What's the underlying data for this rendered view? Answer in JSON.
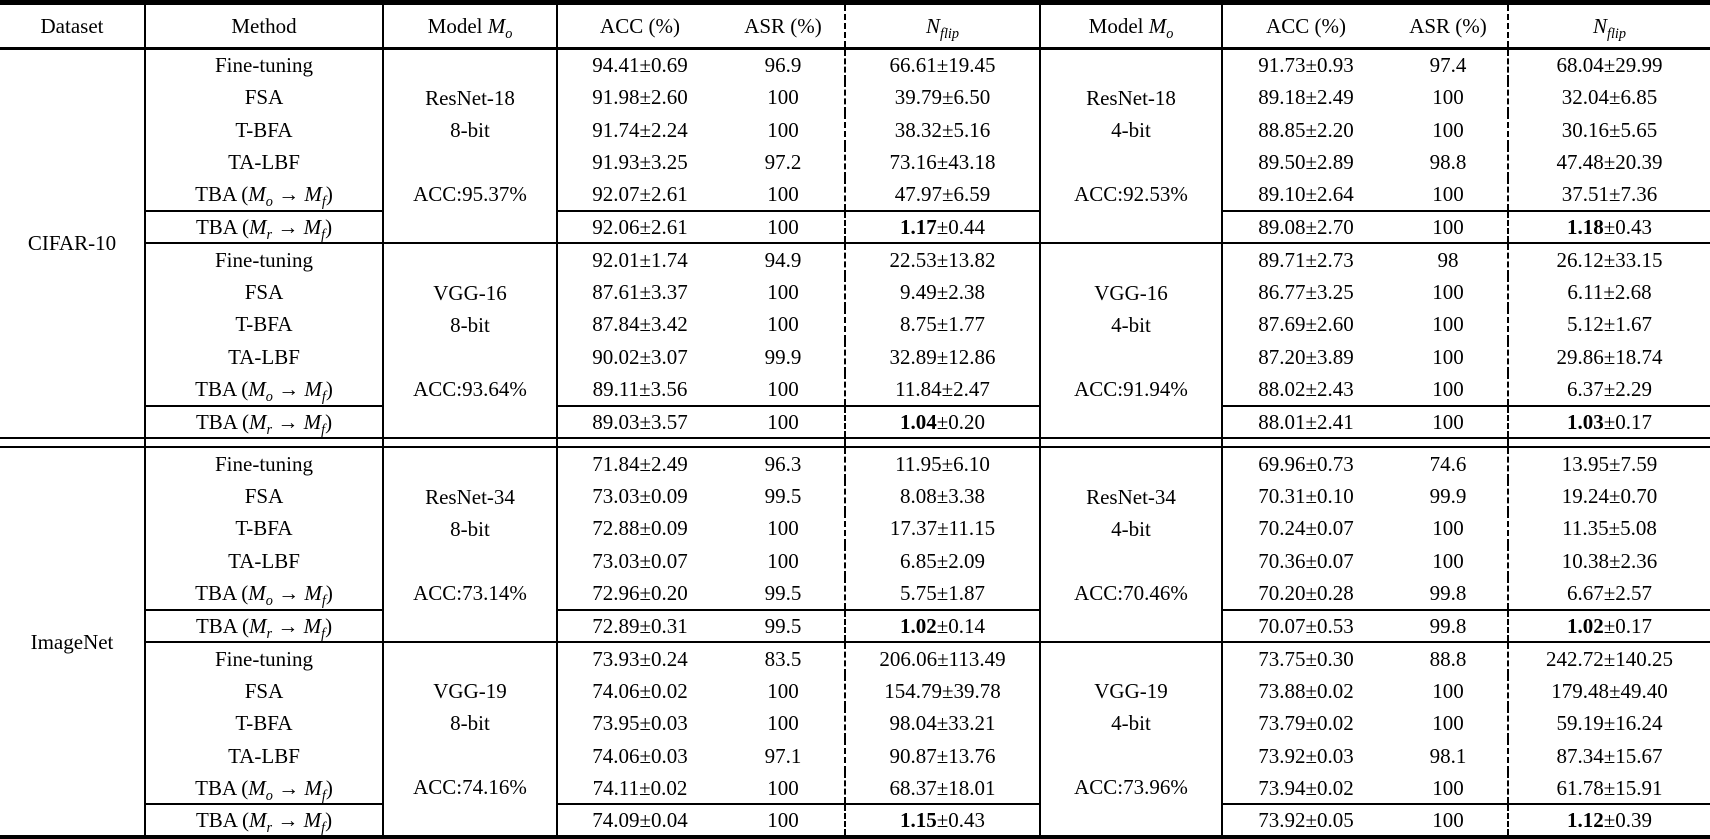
{
  "table": {
    "header": {
      "dataset": "Dataset",
      "method": "Method",
      "model_prefix": "Model",
      "model_var": "M",
      "model_sub": "o",
      "acc": "ACC (%)",
      "asr": "ASR (%)",
      "nflip_var": "N",
      "nflip_sub": "flip"
    },
    "datasets": [
      {
        "name": "CIFAR-10",
        "blocks": [
          {
            "model_left": {
              "name": "ResNet-18",
              "bits": "8-bit",
              "acc": "ACC:95.37%"
            },
            "model_right": {
              "name": "ResNet-18",
              "bits": "4-bit",
              "acc": "ACC:92.53%"
            },
            "rows": [
              {
                "method": "Fine-tuning",
                "left": [
                  "94.41±0.69",
                  "96.9",
                  "66.61±19.45"
                ],
                "right": [
                  "91.73±0.93",
                  "97.4",
                  "68.04±29.99"
                ],
                "highlight": false
              },
              {
                "method": "FSA",
                "left": [
                  "91.98±2.60",
                  "100",
                  "39.79±6.50"
                ],
                "right": [
                  "89.18±2.49",
                  "100",
                  "32.04±6.85"
                ],
                "highlight": false
              },
              {
                "method": "T-BFA",
                "left": [
                  "91.74±2.24",
                  "100",
                  "38.32±5.16"
                ],
                "right": [
                  "88.85±2.20",
                  "100",
                  "30.16±5.65"
                ],
                "highlight": false
              },
              {
                "method": "TA-LBF",
                "left": [
                  "91.93±3.25",
                  "97.2",
                  "73.16±43.18"
                ],
                "right": [
                  "89.50±2.89",
                  "98.8",
                  "47.48±20.39"
                ],
                "highlight": false
              },
              {
                "method": "TBA (M_o → M_f)",
                "left": [
                  "92.07±2.61",
                  "100",
                  "47.97±6.59"
                ],
                "right": [
                  "89.10±2.64",
                  "100",
                  "37.51±7.36"
                ],
                "highlight": false
              },
              {
                "method": "TBA (M_r → M_f)",
                "left": [
                  "92.06±2.61",
                  "100",
                  "1.17±0.44"
                ],
                "right": [
                  "89.08±2.70",
                  "100",
                  "1.18±0.43"
                ],
                "highlight": true
              }
            ]
          },
          {
            "model_left": {
              "name": "VGG-16",
              "bits": "8-bit",
              "acc": "ACC:93.64%"
            },
            "model_right": {
              "name": "VGG-16",
              "bits": "4-bit",
              "acc": "ACC:91.94%"
            },
            "rows": [
              {
                "method": "Fine-tuning",
                "left": [
                  "92.01±1.74",
                  "94.9",
                  "22.53±13.82"
                ],
                "right": [
                  "89.71±2.73",
                  "98",
                  "26.12±33.15"
                ],
                "highlight": false
              },
              {
                "method": "FSA",
                "left": [
                  "87.61±3.37",
                  "100",
                  "9.49±2.38"
                ],
                "right": [
                  "86.77±3.25",
                  "100",
                  "6.11±2.68"
                ],
                "highlight": false
              },
              {
                "method": "T-BFA",
                "left": [
                  "87.84±3.42",
                  "100",
                  "8.75±1.77"
                ],
                "right": [
                  "87.69±2.60",
                  "100",
                  "5.12±1.67"
                ],
                "highlight": false
              },
              {
                "method": "TA-LBF",
                "left": [
                  "90.02±3.07",
                  "99.9",
                  "32.89±12.86"
                ],
                "right": [
                  "87.20±3.89",
                  "100",
                  "29.86±18.74"
                ],
                "highlight": false
              },
              {
                "method": "TBA (M_o → M_f)",
                "left": [
                  "89.11±3.56",
                  "100",
                  "11.84±2.47"
                ],
                "right": [
                  "88.02±2.43",
                  "100",
                  "6.37±2.29"
                ],
                "highlight": false
              },
              {
                "method": "TBA (M_r → M_f)",
                "left": [
                  "89.03±3.57",
                  "100",
                  "1.04±0.20"
                ],
                "right": [
                  "88.01±2.41",
                  "100",
                  "1.03±0.17"
                ],
                "highlight": true
              }
            ]
          }
        ]
      },
      {
        "name": "ImageNet",
        "blocks": [
          {
            "model_left": {
              "name": "ResNet-34",
              "bits": "8-bit",
              "acc": "ACC:73.14%"
            },
            "model_right": {
              "name": "ResNet-34",
              "bits": "4-bit",
              "acc": "ACC:70.46%"
            },
            "rows": [
              {
                "method": "Fine-tuning",
                "left": [
                  "71.84±2.49",
                  "96.3",
                  "11.95±6.10"
                ],
                "right": [
                  "69.96±0.73",
                  "74.6",
                  "13.95±7.59"
                ],
                "highlight": false
              },
              {
                "method": "FSA",
                "left": [
                  "73.03±0.09",
                  "99.5",
                  "8.08±3.38"
                ],
                "right": [
                  "70.31±0.10",
                  "99.9",
                  "19.24±0.70"
                ],
                "highlight": false
              },
              {
                "method": "T-BFA",
                "left": [
                  "72.88±0.09",
                  "100",
                  "17.37±11.15"
                ],
                "right": [
                  "70.24±0.07",
                  "100",
                  "11.35±5.08"
                ],
                "highlight": false
              },
              {
                "method": "TA-LBF",
                "left": [
                  "73.03±0.07",
                  "100",
                  "6.85±2.09"
                ],
                "right": [
                  "70.36±0.07",
                  "100",
                  "10.38±2.36"
                ],
                "highlight": false
              },
              {
                "method": "TBA (M_o → M_f)",
                "left": [
                  "72.96±0.20",
                  "99.5",
                  "5.75±1.87"
                ],
                "right": [
                  "70.20±0.28",
                  "99.8",
                  "6.67±2.57"
                ],
                "highlight": false
              },
              {
                "method": "TBA (M_r → M_f)",
                "left": [
                  "72.89±0.31",
                  "99.5",
                  "1.02±0.14"
                ],
                "right": [
                  "70.07±0.53",
                  "99.8",
                  "1.02±0.17"
                ],
                "highlight": true
              }
            ]
          },
          {
            "model_left": {
              "name": "VGG-19",
              "bits": "8-bit",
              "acc": "ACC:74.16%"
            },
            "model_right": {
              "name": "VGG-19",
              "bits": "4-bit",
              "acc": "ACC:73.96%"
            },
            "rows": [
              {
                "method": "Fine-tuning",
                "left": [
                  "73.93±0.24",
                  "83.5",
                  "206.06±113.49"
                ],
                "right": [
                  "73.75±0.30",
                  "88.8",
                  "242.72±140.25"
                ],
                "highlight": false
              },
              {
                "method": "FSA",
                "left": [
                  "74.06±0.02",
                  "100",
                  "154.79±39.78"
                ],
                "right": [
                  "73.88±0.02",
                  "100",
                  "179.48±49.40"
                ],
                "highlight": false
              },
              {
                "method": "T-BFA",
                "left": [
                  "73.95±0.03",
                  "100",
                  "98.04±33.21"
                ],
                "right": [
                  "73.79±0.02",
                  "100",
                  "59.19±16.24"
                ],
                "highlight": false
              },
              {
                "method": "TA-LBF",
                "left": [
                  "74.06±0.03",
                  "97.1",
                  "90.87±13.76"
                ],
                "right": [
                  "73.92±0.03",
                  "98.1",
                  "87.34±15.67"
                ],
                "highlight": false
              },
              {
                "method": "TBA (M_o → M_f)",
                "left": [
                  "74.11±0.02",
                  "100",
                  "68.37±18.01"
                ],
                "right": [
                  "73.94±0.02",
                  "100",
                  "61.78±15.91"
                ],
                "highlight": false
              },
              {
                "method": "TBA (M_r → M_f)",
                "left": [
                  "74.09±0.04",
                  "100",
                  "1.15±0.43"
                ],
                "right": [
                  "73.92±0.05",
                  "100",
                  "1.12±0.39"
                ],
                "highlight": true
              }
            ]
          }
        ]
      }
    ]
  }
}
